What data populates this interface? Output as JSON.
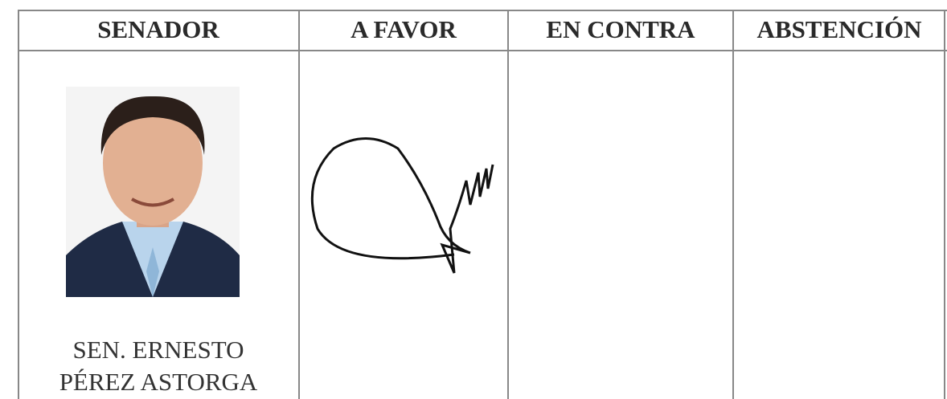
{
  "table": {
    "headers": [
      "SENADOR",
      "A FAVOR",
      "EN CONTRA",
      "ABSTENCIÓN"
    ],
    "rows": [
      {
        "senator": [
          "SEN. ERNESTO",
          "PÉREZ ASTORGA"
        ]
      }
    ]
  }
}
